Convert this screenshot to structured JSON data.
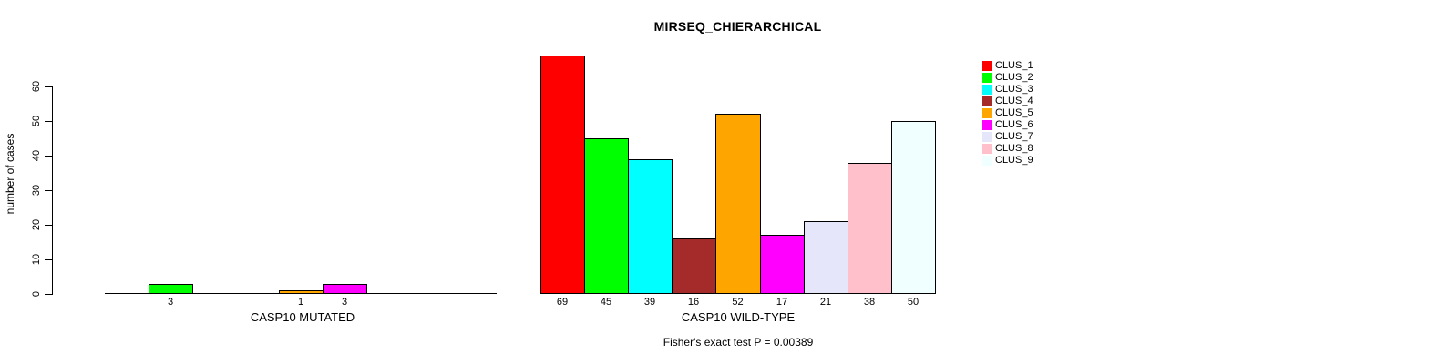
{
  "chart_data": {
    "type": "bar",
    "title": "MIRSEQ_CHIERARCHICAL",
    "ylabel": "number of cases",
    "yticks": [
      0,
      10,
      20,
      30,
      40,
      50,
      60
    ],
    "axis_range": [
      0,
      60
    ],
    "grid": false,
    "legend_position": "top-right",
    "categories": [
      "CLUS_1",
      "CLUS_2",
      "CLUS_3",
      "CLUS_4",
      "CLUS_5",
      "CLUS_6",
      "CLUS_7",
      "CLUS_8",
      "CLUS_9"
    ],
    "colors": [
      "#FF0000",
      "#00FF00",
      "#00FFFF",
      "#A52A2A",
      "#FFA500",
      "#FF00FF",
      "#E6E6FA",
      "#FFC0CB",
      "#F0FFFF"
    ],
    "panels": [
      {
        "xlabel": "CASP10 MUTATED",
        "values": [
          0,
          3,
          0,
          0,
          1,
          3,
          0,
          0,
          0
        ],
        "bar_labels": [
          "",
          "3",
          "",
          "",
          "1",
          "3",
          "",
          "",
          ""
        ]
      },
      {
        "xlabel": "CASP10 WILD-TYPE",
        "values": [
          69,
          45,
          39,
          16,
          52,
          17,
          21,
          38,
          50
        ],
        "bar_labels": [
          "69",
          "45",
          "39",
          "16",
          "52",
          "17",
          "21",
          "38",
          "50"
        ]
      }
    ],
    "annotation": "Fisher's exact test P = 0.00389"
  }
}
